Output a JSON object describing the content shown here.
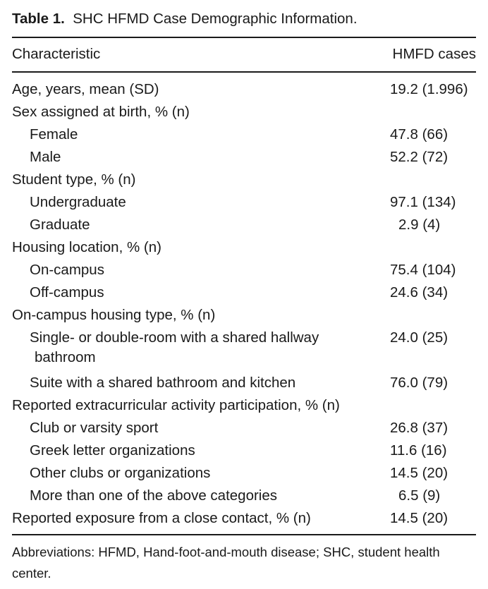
{
  "caption": {
    "label": "Table 1.",
    "title": "SHC HFMD Case Demographic Information."
  },
  "columns": {
    "characteristic": "Characteristic",
    "cases": "HMFD cases"
  },
  "rows": [
    {
      "label": "Age, years, mean (SD)",
      "value": "19.2 (1.996)",
      "indent": false
    },
    {
      "label": "Sex assigned at birth, % (n)",
      "value": "",
      "indent": false
    },
    {
      "label": "Female",
      "value": "47.8 (66)",
      "indent": true
    },
    {
      "label": "Male",
      "value": "52.2 (72)",
      "indent": true
    },
    {
      "label": "Student type, % (n)",
      "value": "",
      "indent": false
    },
    {
      "label": "Undergraduate",
      "value": "97.1 (134)",
      "indent": true
    },
    {
      "label": "Graduate",
      "value": "2.9 (4)",
      "indent": true
    },
    {
      "label": "Housing location, % (n)",
      "value": "",
      "indent": false
    },
    {
      "label": "On-campus",
      "value": "75.4 (104)",
      "indent": true
    },
    {
      "label": "Off-campus",
      "value": "24.6 (34)",
      "indent": true
    },
    {
      "label": "On-campus housing type, % (n)",
      "value": "",
      "indent": false
    },
    {
      "label": "Single- or double-room with a shared hallway",
      "label_cont": "bathroom",
      "value": "24.0 (25)",
      "indent": true
    },
    {
      "label": "Suite with a shared bathroom and kitchen",
      "value": "76.0 (79)",
      "indent": true
    },
    {
      "label": "Reported extracurricular activity participation, % (n)",
      "value": "",
      "indent": false
    },
    {
      "label": "Club or varsity sport",
      "value": "26.8 (37)",
      "indent": true
    },
    {
      "label": "Greek letter organizations",
      "value": "11.6 (16)",
      "indent": true
    },
    {
      "label": "Other clubs or organizations",
      "value": "14.5 (20)",
      "indent": true
    },
    {
      "label": "More than one of the above categories",
      "value": "6.5 (9)",
      "indent": true
    },
    {
      "label": "Reported exposure from a close contact, % (n)",
      "value": "14.5 (20)",
      "indent": false
    }
  ],
  "footnote": "Abbreviations: HFMD, Hand-foot-and-mouth disease; SHC, student health center."
}
